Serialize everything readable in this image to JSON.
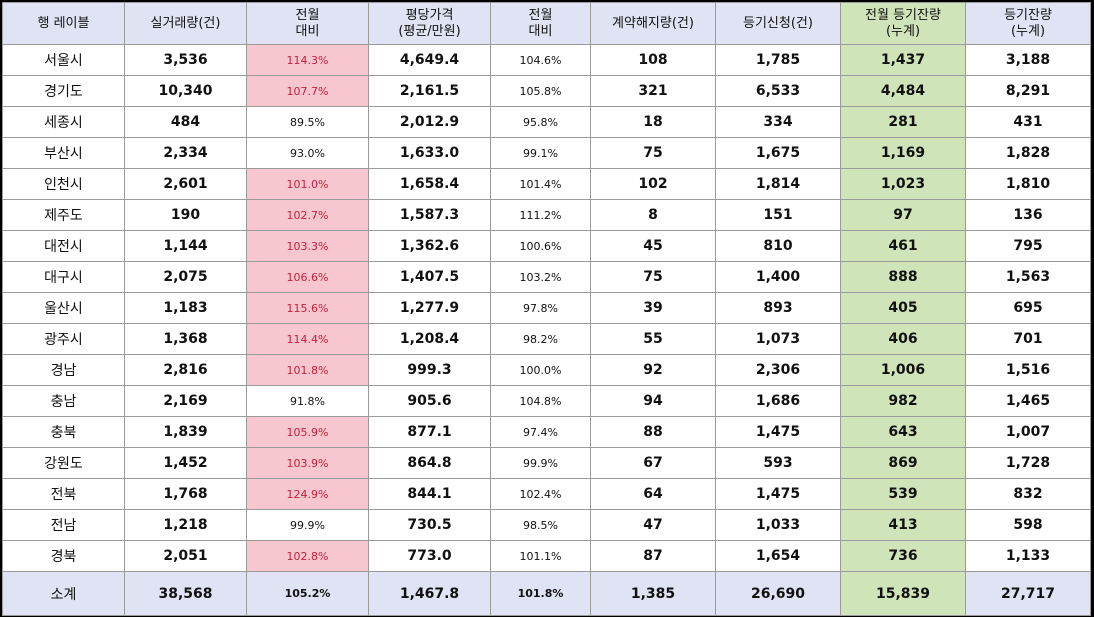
{
  "headers": [
    {
      "line1": "행 레이블",
      "line2": ""
    },
    {
      "line1": "실거래량(건)",
      "line2": ""
    },
    {
      "line1": "전월",
      "line2": "대비"
    },
    {
      "line1": "평당가격",
      "line2": "(평균/만원)"
    },
    {
      "line1": "전월",
      "line2": "대비"
    },
    {
      "line1": "계약해지량(건)",
      "line2": ""
    },
    {
      "line1": "등기신청(건)",
      "line2": ""
    },
    {
      "line1": "전월 등기잔량",
      "line2": "(누계)"
    },
    {
      "line1": "등기잔량",
      "line2": "(누계)"
    }
  ],
  "rows": [
    {
      "region": "서울시",
      "volume": "3,536",
      "vol_mom": "114.3%",
      "vol_mom_up": true,
      "price": "4,649.4",
      "price_mom": "104.6%",
      "cancel": "108",
      "registration": "1,785",
      "prev_balance": "1,437",
      "balance": "3,188"
    },
    {
      "region": "경기도",
      "volume": "10,340",
      "vol_mom": "107.7%",
      "vol_mom_up": true,
      "price": "2,161.5",
      "price_mom": "105.8%",
      "cancel": "321",
      "registration": "6,533",
      "prev_balance": "4,484",
      "balance": "8,291"
    },
    {
      "region": "세종시",
      "volume": "484",
      "vol_mom": "89.5%",
      "vol_mom_up": false,
      "price": "2,012.9",
      "price_mom": "95.8%",
      "cancel": "18",
      "registration": "334",
      "prev_balance": "281",
      "balance": "431"
    },
    {
      "region": "부산시",
      "volume": "2,334",
      "vol_mom": "93.0%",
      "vol_mom_up": false,
      "price": "1,633.0",
      "price_mom": "99.1%",
      "cancel": "75",
      "registration": "1,675",
      "prev_balance": "1,169",
      "balance": "1,828"
    },
    {
      "region": "인천시",
      "volume": "2,601",
      "vol_mom": "101.0%",
      "vol_mom_up": true,
      "price": "1,658.4",
      "price_mom": "101.4%",
      "cancel": "102",
      "registration": "1,814",
      "prev_balance": "1,023",
      "balance": "1,810"
    },
    {
      "region": "제주도",
      "volume": "190",
      "vol_mom": "102.7%",
      "vol_mom_up": true,
      "price": "1,587.3",
      "price_mom": "111.2%",
      "cancel": "8",
      "registration": "151",
      "prev_balance": "97",
      "balance": "136"
    },
    {
      "region": "대전시",
      "volume": "1,144",
      "vol_mom": "103.3%",
      "vol_mom_up": true,
      "price": "1,362.6",
      "price_mom": "100.6%",
      "cancel": "45",
      "registration": "810",
      "prev_balance": "461",
      "balance": "795"
    },
    {
      "region": "대구시",
      "volume": "2,075",
      "vol_mom": "106.6%",
      "vol_mom_up": true,
      "price": "1,407.5",
      "price_mom": "103.2%",
      "cancel": "75",
      "registration": "1,400",
      "prev_balance": "888",
      "balance": "1,563"
    },
    {
      "region": "울산시",
      "volume": "1,183",
      "vol_mom": "115.6%",
      "vol_mom_up": true,
      "price": "1,277.9",
      "price_mom": "97.8%",
      "cancel": "39",
      "registration": "893",
      "prev_balance": "405",
      "balance": "695"
    },
    {
      "region": "광주시",
      "volume": "1,368",
      "vol_mom": "114.4%",
      "vol_mom_up": true,
      "price": "1,208.4",
      "price_mom": "98.2%",
      "cancel": "55",
      "registration": "1,073",
      "prev_balance": "406",
      "balance": "701"
    },
    {
      "region": "경남",
      "volume": "2,816",
      "vol_mom": "101.8%",
      "vol_mom_up": true,
      "price": "999.3",
      "price_mom": "100.0%",
      "cancel": "92",
      "registration": "2,306",
      "prev_balance": "1,006",
      "balance": "1,516"
    },
    {
      "region": "충남",
      "volume": "2,169",
      "vol_mom": "91.8%",
      "vol_mom_up": false,
      "price": "905.6",
      "price_mom": "104.8%",
      "cancel": "94",
      "registration": "1,686",
      "prev_balance": "982",
      "balance": "1,465"
    },
    {
      "region": "충북",
      "volume": "1,839",
      "vol_mom": "105.9%",
      "vol_mom_up": true,
      "price": "877.1",
      "price_mom": "97.4%",
      "cancel": "88",
      "registration": "1,475",
      "prev_balance": "643",
      "balance": "1,007"
    },
    {
      "region": "강원도",
      "volume": "1,452",
      "vol_mom": "103.9%",
      "vol_mom_up": true,
      "price": "864.8",
      "price_mom": "99.9%",
      "cancel": "67",
      "registration": "593",
      "prev_balance": "869",
      "balance": "1,728"
    },
    {
      "region": "전북",
      "volume": "1,768",
      "vol_mom": "124.9%",
      "vol_mom_up": true,
      "price": "844.1",
      "price_mom": "102.4%",
      "cancel": "64",
      "registration": "1,475",
      "prev_balance": "539",
      "balance": "832"
    },
    {
      "region": "전남",
      "volume": "1,218",
      "vol_mom": "99.9%",
      "vol_mom_up": false,
      "price": "730.5",
      "price_mom": "98.5%",
      "cancel": "47",
      "registration": "1,033",
      "prev_balance": "413",
      "balance": "598"
    },
    {
      "region": "경북",
      "volume": "2,051",
      "vol_mom": "102.8%",
      "vol_mom_up": true,
      "price": "773.0",
      "price_mom": "101.1%",
      "cancel": "87",
      "registration": "1,654",
      "prev_balance": "736",
      "balance": "1,133"
    }
  ],
  "total": {
    "region": "소계",
    "volume": "38,568",
    "vol_mom": "105.2%",
    "price": "1,467.8",
    "price_mom": "101.8%",
    "cancel": "1,385",
    "registration": "26,690",
    "prev_balance": "15,839",
    "balance": "27,717"
  },
  "colors": {
    "header_bg": "#dfe3f4",
    "highlight_green": "#cfe4b9",
    "increase_pink": "#f8c6cf",
    "increase_text": "#c0223c"
  }
}
